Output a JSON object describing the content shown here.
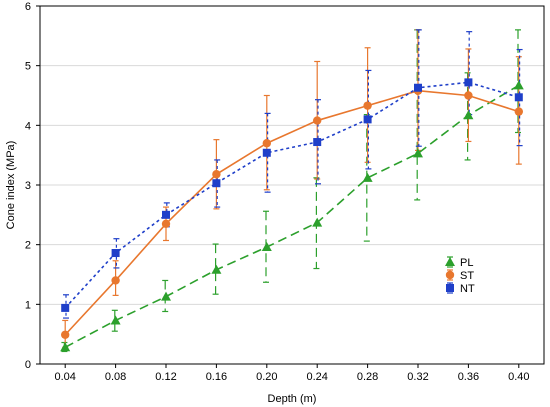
{
  "chart_data": {
    "type": "line",
    "xlabel": "Depth (m)",
    "ylabel": "Cone index (MPa)",
    "categories": [
      "0.04",
      "0.08",
      "0.12",
      "0.16",
      "0.20",
      "0.24",
      "0.28",
      "0.32",
      "0.36",
      "0.40"
    ],
    "ylim": [
      0,
      6
    ],
    "yticks": [
      "0",
      "1",
      "2",
      "3",
      "4",
      "5",
      "6"
    ],
    "grid": true,
    "legend_position": "lower-right",
    "series": [
      {
        "name": "PL",
        "color": "#2ca02c",
        "marker": "triangle",
        "dash": "dashed",
        "values": [
          0.28,
          0.73,
          1.13,
          1.58,
          1.96,
          2.37,
          3.12,
          3.53,
          4.17,
          4.67
        ],
        "err_low": [
          0.21,
          0.55,
          0.88,
          1.17,
          1.37,
          1.6,
          2.06,
          2.75,
          3.42,
          3.88
        ],
        "err_high": [
          0.36,
          0.9,
          1.4,
          2.01,
          2.56,
          3.12,
          4.18,
          5.6,
          4.88,
          5.6
        ]
      },
      {
        "name": "ST",
        "color": "#e8772e",
        "marker": "circle",
        "dash": "solid",
        "values": [
          0.49,
          1.4,
          2.35,
          3.18,
          3.7,
          4.08,
          4.33,
          4.58,
          4.5,
          4.23
        ],
        "err_low": [
          0.28,
          1.15,
          2.07,
          2.6,
          2.92,
          3.1,
          3.38,
          3.58,
          3.73,
          3.35
        ],
        "err_high": [
          0.73,
          1.73,
          2.63,
          3.76,
          4.5,
          5.07,
          5.3,
          5.6,
          5.28,
          5.15
        ]
      },
      {
        "name": "NT",
        "color": "#1f3fc9",
        "marker": "square",
        "dash": "dotted",
        "values": [
          0.94,
          1.86,
          2.5,
          3.03,
          3.54,
          3.72,
          4.1,
          4.63,
          4.72,
          4.47
        ],
        "err_low": [
          0.77,
          1.61,
          2.3,
          2.63,
          2.88,
          3.02,
          3.27,
          3.65,
          4.18,
          3.66
        ],
        "err_high": [
          1.16,
          2.1,
          2.7,
          3.42,
          4.2,
          4.43,
          4.92,
          5.6,
          5.57,
          5.27
        ]
      }
    ]
  }
}
